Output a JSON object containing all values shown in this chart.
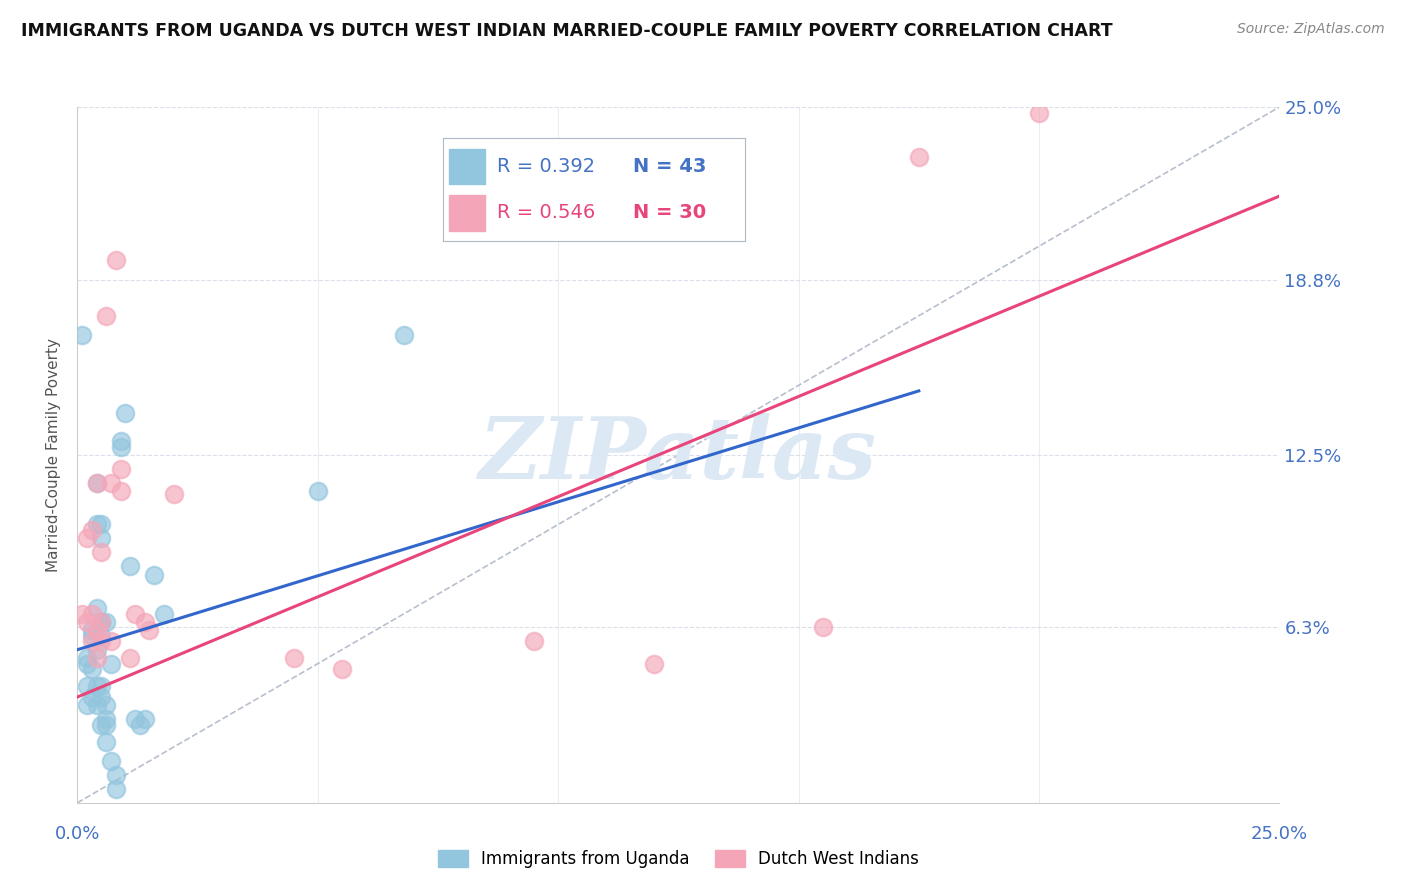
{
  "title": "IMMIGRANTS FROM UGANDA VS DUTCH WEST INDIAN MARRIED-COUPLE FAMILY POVERTY CORRELATION CHART",
  "source": "Source: ZipAtlas.com",
  "ylabel": "Married-Couple Family Poverty",
  "xlim": [
    0.0,
    0.25
  ],
  "ylim": [
    0.0,
    0.25
  ],
  "ytick_labels": [
    "6.3%",
    "12.5%",
    "18.8%",
    "25.0%"
  ],
  "ytick_values": [
    0.063,
    0.125,
    0.188,
    0.25
  ],
  "xtick_values": [
    0.0,
    0.05,
    0.1,
    0.15,
    0.2,
    0.25
  ],
  "legend_blue_r": "R = 0.392",
  "legend_blue_n": "N = 43",
  "legend_pink_r": "R = 0.546",
  "legend_pink_n": "N = 30",
  "blue_color": "#92c5de",
  "pink_color": "#f4a6b8",
  "blue_line_color": "#3366cc",
  "pink_line_color": "#e8457a",
  "diagonal_color": "#b0b8c8",
  "watermark": "ZIPatlas",
  "watermark_color": "#dce9f5",
  "background_color": "#ffffff",
  "grid_color": "#d8dce8",
  "right_label_color": "#4472c4",
  "blue_scatter": [
    [
      0.001,
      0.168
    ],
    [
      0.002,
      0.052
    ],
    [
      0.002,
      0.042
    ],
    [
      0.002,
      0.05
    ],
    [
      0.002,
      0.035
    ],
    [
      0.003,
      0.048
    ],
    [
      0.003,
      0.038
    ],
    [
      0.003,
      0.06
    ],
    [
      0.003,
      0.062
    ],
    [
      0.004,
      0.1
    ],
    [
      0.004,
      0.115
    ],
    [
      0.004,
      0.042
    ],
    [
      0.004,
      0.035
    ],
    [
      0.004,
      0.055
    ],
    [
      0.004,
      0.07
    ],
    [
      0.005,
      0.095
    ],
    [
      0.005,
      0.1
    ],
    [
      0.005,
      0.065
    ],
    [
      0.005,
      0.06
    ],
    [
      0.005,
      0.038
    ],
    [
      0.005,
      0.028
    ],
    [
      0.005,
      0.065
    ],
    [
      0.005,
      0.042
    ],
    [
      0.006,
      0.035
    ],
    [
      0.006,
      0.03
    ],
    [
      0.006,
      0.065
    ],
    [
      0.006,
      0.028
    ],
    [
      0.006,
      0.022
    ],
    [
      0.007,
      0.05
    ],
    [
      0.007,
      0.015
    ],
    [
      0.008,
      0.01
    ],
    [
      0.008,
      0.005
    ],
    [
      0.009,
      0.13
    ],
    [
      0.009,
      0.128
    ],
    [
      0.01,
      0.14
    ],
    [
      0.011,
      0.085
    ],
    [
      0.012,
      0.03
    ],
    [
      0.013,
      0.028
    ],
    [
      0.014,
      0.03
    ],
    [
      0.016,
      0.082
    ],
    [
      0.018,
      0.068
    ],
    [
      0.05,
      0.112
    ],
    [
      0.068,
      0.168
    ]
  ],
  "pink_scatter": [
    [
      0.001,
      0.068
    ],
    [
      0.002,
      0.065
    ],
    [
      0.002,
      0.095
    ],
    [
      0.003,
      0.098
    ],
    [
      0.003,
      0.068
    ],
    [
      0.003,
      0.058
    ],
    [
      0.004,
      0.115
    ],
    [
      0.004,
      0.062
    ],
    [
      0.004,
      0.052
    ],
    [
      0.005,
      0.09
    ],
    [
      0.005,
      0.065
    ],
    [
      0.005,
      0.058
    ],
    [
      0.006,
      0.175
    ],
    [
      0.007,
      0.115
    ],
    [
      0.007,
      0.058
    ],
    [
      0.008,
      0.195
    ],
    [
      0.009,
      0.12
    ],
    [
      0.009,
      0.112
    ],
    [
      0.011,
      0.052
    ],
    [
      0.012,
      0.068
    ],
    [
      0.014,
      0.065
    ],
    [
      0.015,
      0.062
    ],
    [
      0.02,
      0.111
    ],
    [
      0.045,
      0.052
    ],
    [
      0.055,
      0.048
    ],
    [
      0.095,
      0.058
    ],
    [
      0.12,
      0.05
    ],
    [
      0.155,
      0.063
    ],
    [
      0.175,
      0.232
    ],
    [
      0.2,
      0.248
    ]
  ],
  "blue_trend_x": [
    0.0,
    0.175
  ],
  "blue_trend_y": [
    0.055,
    0.148
  ],
  "pink_trend_x": [
    0.0,
    0.25
  ],
  "pink_trend_y": [
    0.038,
    0.218
  ],
  "legend_label_blue": "Immigrants from Uganda",
  "legend_label_pink": "Dutch West Indians"
}
